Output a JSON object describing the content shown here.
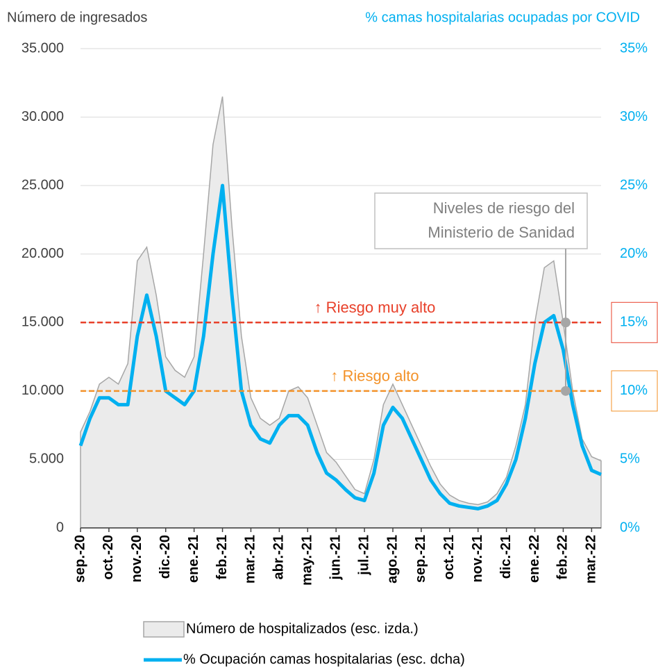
{
  "chart_data": {
    "type": "area_line",
    "y_title": "Número de ingresados",
    "y2_title": "% camas hospitalarias ocupadas por COVID",
    "categories": [
      "sep.-20",
      null,
      null,
      "oct.-20",
      null,
      null,
      "nov.-20",
      null,
      null,
      "dic.-20",
      null,
      null,
      "ene.-21",
      null,
      null,
      "feb.-21",
      null,
      null,
      "mar.-21",
      null,
      null,
      "abr.-21",
      null,
      null,
      "may.-21",
      null,
      null,
      "jun.-21",
      null,
      null,
      "jul.-21",
      null,
      null,
      "ago.-21",
      null,
      null,
      "sep.-21",
      null,
      null,
      "oct.-21",
      null,
      null,
      "nov.-21",
      null,
      null,
      "dic.-21",
      null,
      null,
      "ene.-22",
      null,
      null,
      "feb.-22",
      null,
      null,
      "mar.-22",
      null
    ],
    "series": [
      {
        "name": "Número de hospitalizados (esc. izda.)",
        "color": "#ebebeb",
        "stroke": "#a6a6a6",
        "axis": "y",
        "values": [
          7000,
          8500,
          10500,
          11000,
          10500,
          12000,
          19500,
          20500,
          17000,
          12500,
          11500,
          11000,
          12500,
          20000,
          28000,
          31500,
          22000,
          14000,
          9500,
          8000,
          7500,
          8000,
          10000,
          10300,
          9500,
          7500,
          5500,
          4800,
          3800,
          2800,
          2500,
          5000,
          9000,
          10500,
          9000,
          7500,
          6000,
          4500,
          3200,
          2400,
          2000,
          1800,
          1700,
          1900,
          2500,
          3700,
          6000,
          9000,
          15000,
          19000,
          19500,
          15000,
          10000,
          6500,
          5200,
          4900
        ]
      },
      {
        "name": "% Ocupación camas hospitalarias (esc. dcha)",
        "color": "#00b0f0",
        "axis": "y2",
        "values": [
          6,
          8,
          9.5,
          9.5,
          9,
          9,
          14,
          17,
          14,
          10,
          9.5,
          9,
          10,
          14,
          20,
          25,
          17,
          10,
          7.5,
          6.5,
          6.2,
          7.5,
          8.2,
          8.2,
          7.5,
          5.5,
          4,
          3.5,
          2.8,
          2.2,
          2,
          4,
          7.5,
          8.8,
          8,
          6.5,
          5,
          3.5,
          2.5,
          1.8,
          1.6,
          1.5,
          1.4,
          1.6,
          2,
          3.2,
          5,
          8,
          12,
          15,
          15.5,
          13,
          9,
          6,
          4.2,
          3.9
        ]
      }
    ],
    "ylim": [
      0,
      35000
    ],
    "yticks": [
      0,
      {
        "value": 5000,
        "label": "5.000"
      },
      {
        "value": 10000,
        "label": "10.000"
      },
      {
        "value": 15000,
        "label": "15.000"
      },
      {
        "value": 20000,
        "label": "20.000"
      },
      {
        "value": 25000,
        "label": "25.000"
      },
      {
        "value": 30000,
        "label": "30.000"
      },
      {
        "value": 35000,
        "label": "35.000"
      }
    ],
    "y2lim": [
      0,
      35
    ],
    "y2ticks": [
      {
        "value": 0,
        "label": "0%"
      },
      {
        "value": 5,
        "label": "5%"
      },
      {
        "value": 10,
        "label": "10%"
      },
      {
        "value": 15,
        "label": "15%"
      },
      {
        "value": 20,
        "label": "20%"
      },
      {
        "value": 25,
        "label": "25%"
      },
      {
        "value": 30,
        "label": "30%"
      },
      {
        "value": 35,
        "label": "35%"
      }
    ],
    "grid": true,
    "reference_lines": [
      {
        "value": 15,
        "label": "↑ Riesgo muy alto",
        "color": "#e8402a"
      },
      {
        "value": 10,
        "label": "↑ Riesgo alto",
        "color": "#f39229"
      }
    ],
    "annotation": [
      "Niveles de riesgo del",
      "Ministerio de Sanidad"
    ]
  }
}
